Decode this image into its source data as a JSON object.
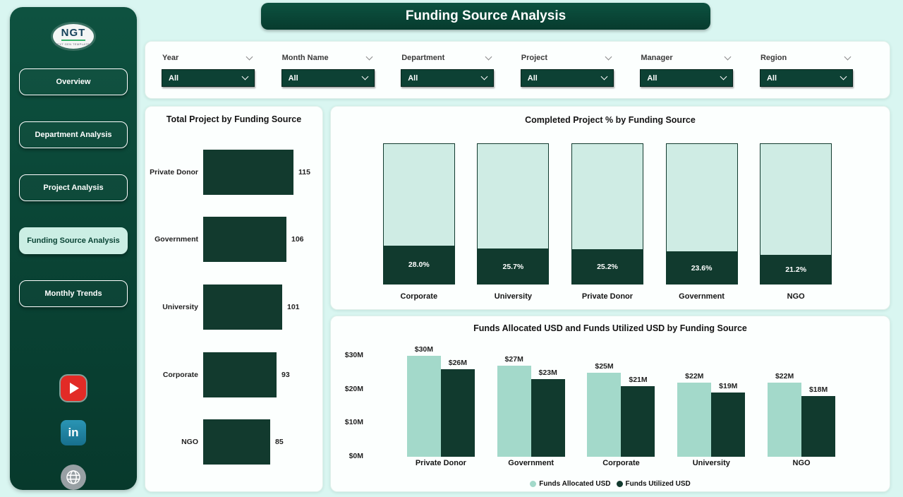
{
  "page": {
    "title": "Funding Source Analysis"
  },
  "sidebar": {
    "logo_text": "NGT",
    "logo_sub": "NEXT GEN TEMPLATES",
    "items": [
      {
        "label": "Overview",
        "active": false
      },
      {
        "label": "Department Analysis",
        "active": false
      },
      {
        "label": "Project Analysis",
        "active": false
      },
      {
        "label": "Funding Source Analysis",
        "active": true
      },
      {
        "label": "Monthly Trends",
        "active": false
      }
    ],
    "social": [
      {
        "name": "youtube",
        "color": "#e22b26"
      },
      {
        "name": "linkedin",
        "color": "#1f7f9f"
      },
      {
        "name": "website",
        "color": "#98a0a4"
      }
    ]
  },
  "filters": [
    {
      "label": "Year",
      "value": "All"
    },
    {
      "label": "Month Name",
      "value": "All"
    },
    {
      "label": "Department",
      "value": "All"
    },
    {
      "label": "Project",
      "value": "All"
    },
    {
      "label": "Manager",
      "value": "All"
    },
    {
      "label": "Region",
      "value": "All"
    }
  ],
  "colors": {
    "dark_green": "#113a2e",
    "light_mint": "#a3d9ca",
    "stacked_light": "#cfece4",
    "page_bg": "#d9f6f1",
    "sidebar_green": "#0a4536",
    "active_nav": "#cbeee4"
  },
  "chart_data": [
    {
      "type": "bar",
      "orientation": "horizontal",
      "title": "Total Project by Funding Source",
      "categories": [
        "Private Donor",
        "Government",
        "University",
        "Corporate",
        "NGO"
      ],
      "values": [
        115,
        106,
        101,
        93,
        85
      ],
      "xlim": [
        0,
        115
      ],
      "bar_color": "#123a2e"
    },
    {
      "type": "bar",
      "subtype": "stacked-percent",
      "title": "Completed Project % by Funding Source",
      "categories": [
        "Corporate",
        "University",
        "Private Donor",
        "Government",
        "NGO"
      ],
      "values": [
        28.0,
        25.7,
        25.2,
        23.6,
        21.2
      ],
      "labels": [
        "28.0%",
        "25.7%",
        "25.2%",
        "23.6%",
        "21.2%"
      ],
      "ylim": [
        0,
        100
      ],
      "fill_color": "#113a2e",
      "rest_color": "#cfece4"
    },
    {
      "type": "bar",
      "subtype": "clustered",
      "title": "Funds Allocated USD and Funds Utilized USD by Funding Source",
      "categories": [
        "Private Donor",
        "Government",
        "Corporate",
        "University",
        "NGO"
      ],
      "series": [
        {
          "name": "Funds Allocated USD",
          "values": [
            30,
            27,
            25,
            22,
            22
          ],
          "labels": [
            "$30M",
            "$27M",
            "$25M",
            "$22M",
            "$22M"
          ],
          "color": "#a3d9ca"
        },
        {
          "name": "Funds Utilized USD",
          "values": [
            26,
            23,
            21,
            19,
            18
          ],
          "labels": [
            "$26M",
            "$23M",
            "$21M",
            "$19M",
            "$18M"
          ],
          "color": "#113a2e"
        }
      ],
      "ylim": [
        0,
        30
      ],
      "yticks": [
        {
          "label": "$30M",
          "value": 30
        },
        {
          "label": "$20M",
          "value": 20
        },
        {
          "label": "$10M",
          "value": 10
        },
        {
          "label": "$0M",
          "value": 0
        }
      ],
      "legend_position": "bottom"
    }
  ]
}
